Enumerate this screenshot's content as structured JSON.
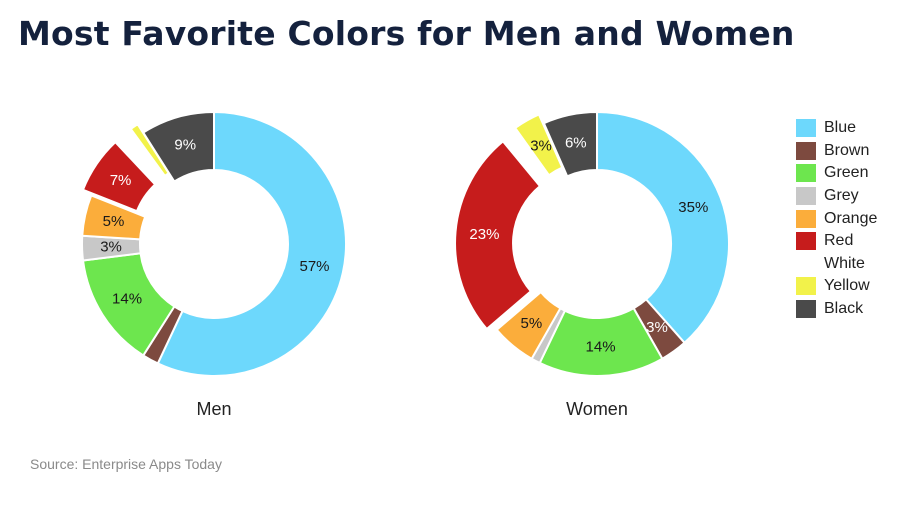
{
  "title": "Most Favorite Colors for Men and Women",
  "source": "Source: Enterprise Apps Today",
  "chart_data": {
    "type": "pie",
    "variant": "donut",
    "categories": [
      "Blue",
      "Brown",
      "Green",
      "Grey",
      "Orange",
      "Red",
      "White",
      "Yellow",
      "Black"
    ],
    "colors": [
      "#6dd8fc",
      "#7d4a3f",
      "#6de64e",
      "#c8c8c8",
      "#fbad3b",
      "#c61c1c",
      "#ffffff",
      "#f2f24a",
      "#4a4a4a"
    ],
    "series": [
      {
        "name": "Men",
        "values": [
          57,
          2,
          14,
          3,
          5,
          7,
          2,
          1,
          9
        ]
      },
      {
        "name": "Women",
        "values": [
          35,
          3,
          14,
          1,
          5,
          23,
          1,
          3,
          6
        ]
      }
    ],
    "data_labels": [
      [
        "57%",
        "",
        "14%",
        "3%",
        "5%",
        "7%",
        "",
        "",
        "9%"
      ],
      [
        "35%",
        "3%",
        "14%",
        "",
        "5%",
        "23%",
        "",
        "3%",
        "6%"
      ]
    ],
    "legend": "right"
  }
}
